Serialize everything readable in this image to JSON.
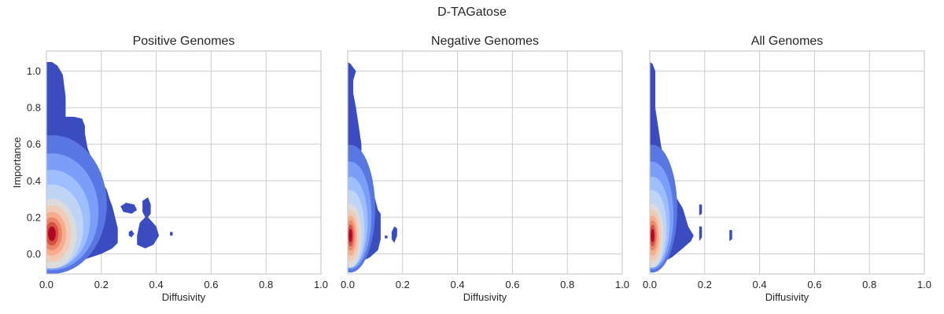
{
  "figure": {
    "suptitle": "D-TAGatose"
  },
  "colors": {
    "levels": [
      "#3b4cc0",
      "#5977e3",
      "#7b9ff9",
      "#9ebeff",
      "#c0d4f5",
      "#dddcdc",
      "#f2cbb7",
      "#f7ac8e",
      "#ee8468",
      "#d65244",
      "#b40426"
    ],
    "grid": "#cccccc",
    "background": "#ffffff"
  },
  "chart_data": [
    {
      "type": "density-contour",
      "title": "Positive Genomes",
      "xlabel": "Diffusivity",
      "ylabel": "Importance",
      "xlim": [
        0,
        1
      ],
      "ylim": [
        -0.11,
        1.11
      ],
      "xticks": [
        "0.0",
        "0.2",
        "0.4",
        "0.6",
        "0.8",
        "1.0"
      ],
      "yticks": [
        "0.0",
        "0.2",
        "0.4",
        "0.6",
        "0.8",
        "1.0"
      ],
      "grid": true,
      "density_peak": {
        "x": 0.02,
        "y": 0.11
      },
      "outer_region": {
        "upper_edge": [
          [
            0.0,
            1.05
          ],
          [
            0.02,
            1.05
          ],
          [
            0.04,
            1.03
          ],
          [
            0.06,
            0.98
          ],
          [
            0.07,
            0.86
          ],
          [
            0.07,
            0.75
          ],
          [
            0.1,
            0.75
          ],
          [
            0.13,
            0.74
          ],
          [
            0.14,
            0.7
          ],
          [
            0.14,
            0.66
          ],
          [
            0.15,
            0.58
          ],
          [
            0.17,
            0.5
          ],
          [
            0.18,
            0.45
          ],
          [
            0.2,
            0.4
          ],
          [
            0.22,
            0.35
          ],
          [
            0.23,
            0.3
          ],
          [
            0.24,
            0.26
          ],
          [
            0.25,
            0.2
          ],
          [
            0.26,
            0.14
          ],
          [
            0.26,
            0.06
          ],
          [
            0.24,
            0.03
          ],
          [
            0.2,
            -0.0
          ],
          [
            0.14,
            -0.03
          ],
          [
            0.1,
            -0.05
          ],
          [
            0.06,
            -0.07
          ],
          [
            0.02,
            -0.07
          ],
          [
            0.0,
            -0.07
          ]
        ],
        "islands": [
          [
            [
              0.27,
              0.26
            ],
            [
              0.29,
              0.28
            ],
            [
              0.32,
              0.27
            ],
            [
              0.33,
              0.24
            ],
            [
              0.31,
              0.22
            ],
            [
              0.28,
              0.23
            ]
          ],
          [
            [
              0.35,
              0.25
            ],
            [
              0.35,
              0.29
            ],
            [
              0.37,
              0.31
            ],
            [
              0.38,
              0.27
            ],
            [
              0.38,
              0.22
            ],
            [
              0.37,
              0.2
            ],
            [
              0.4,
              0.15
            ],
            [
              0.41,
              0.1
            ],
            [
              0.39,
              0.05
            ],
            [
              0.36,
              0.03
            ],
            [
              0.33,
              0.05
            ],
            [
              0.33,
              0.1
            ],
            [
              0.34,
              0.17
            ],
            [
              0.36,
              0.2
            ],
            [
              0.35,
              0.23
            ]
          ],
          [
            [
              0.3,
              0.12
            ],
            [
              0.31,
              0.13
            ],
            [
              0.32,
              0.11
            ],
            [
              0.31,
              0.09
            ],
            [
              0.3,
              0.1
            ]
          ],
          [
            [
              0.45,
              0.12
            ],
            [
              0.46,
              0.12
            ],
            [
              0.46,
              0.1
            ],
            [
              0.45,
              0.1
            ]
          ]
        ]
      },
      "core": {
        "x": 0.02,
        "y": 0.11,
        "scale_x": 1.0,
        "scale_y": 1.0
      }
    },
    {
      "type": "density-contour",
      "title": "Negative Genomes",
      "xlabel": "Diffusivity",
      "ylabel": "",
      "xlim": [
        0,
        1
      ],
      "ylim": [
        -0.11,
        1.11
      ],
      "xticks": [
        "0.0",
        "0.2",
        "0.4",
        "0.6",
        "0.8",
        "1.0"
      ],
      "yticks": [],
      "grid": true,
      "density_peak": {
        "x": 0.01,
        "y": 0.1
      },
      "outer_region": {
        "upper_edge": [
          [
            0.0,
            1.05
          ],
          [
            0.01,
            1.04
          ],
          [
            0.03,
            1.0
          ],
          [
            0.02,
            0.95
          ],
          [
            0.02,
            0.88
          ],
          [
            0.03,
            0.8
          ],
          [
            0.04,
            0.7
          ],
          [
            0.05,
            0.6
          ],
          [
            0.05,
            0.52
          ],
          [
            0.06,
            0.45
          ],
          [
            0.07,
            0.38
          ],
          [
            0.09,
            0.33
          ],
          [
            0.1,
            0.3
          ],
          [
            0.11,
            0.24
          ],
          [
            0.12,
            0.22
          ],
          [
            0.12,
            0.16
          ],
          [
            0.12,
            0.08
          ],
          [
            0.11,
            0.02
          ],
          [
            0.08,
            -0.02
          ],
          [
            0.04,
            -0.05
          ],
          [
            0.0,
            -0.06
          ]
        ],
        "islands": [
          [
            [
              0.17,
              0.15
            ],
            [
              0.18,
              0.14
            ],
            [
              0.18,
              0.1
            ],
            [
              0.17,
              0.06
            ],
            [
              0.16,
              0.08
            ],
            [
              0.16,
              0.12
            ]
          ],
          [
            [
              0.135,
              0.1
            ],
            [
              0.145,
              0.1
            ],
            [
              0.145,
              0.085
            ],
            [
              0.135,
              0.085
            ]
          ]
        ]
      },
      "core": {
        "x": 0.01,
        "y": 0.1,
        "scale_x": 0.45,
        "scale_y": 0.92
      }
    },
    {
      "type": "density-contour",
      "title": "All Genomes",
      "xlabel": "Diffusivity",
      "ylabel": "",
      "xlim": [
        0,
        1
      ],
      "ylim": [
        -0.11,
        1.11
      ],
      "xticks": [
        "0.0",
        "0.2",
        "0.4",
        "0.6",
        "0.8",
        "1.0"
      ],
      "yticks": [],
      "grid": true,
      "density_peak": {
        "x": 0.01,
        "y": 0.1
      },
      "outer_region": {
        "upper_edge": [
          [
            0.0,
            1.05
          ],
          [
            0.01,
            1.04
          ],
          [
            0.02,
            1.0
          ],
          [
            0.02,
            0.95
          ],
          [
            0.02,
            0.88
          ],
          [
            0.02,
            0.8
          ],
          [
            0.03,
            0.7
          ],
          [
            0.04,
            0.6
          ],
          [
            0.05,
            0.52
          ],
          [
            0.06,
            0.44
          ],
          [
            0.07,
            0.38
          ],
          [
            0.09,
            0.33
          ],
          [
            0.1,
            0.3
          ],
          [
            0.12,
            0.25
          ],
          [
            0.13,
            0.2
          ],
          [
            0.14,
            0.15
          ],
          [
            0.16,
            0.1
          ],
          [
            0.15,
            0.07
          ],
          [
            0.12,
            0.03
          ],
          [
            0.08,
            -0.02
          ],
          [
            0.04,
            -0.05
          ],
          [
            0.0,
            -0.06
          ]
        ],
        "islands": [
          [
            [
              0.18,
              0.27
            ],
            [
              0.19,
              0.27
            ],
            [
              0.19,
              0.22
            ],
            [
              0.18,
              0.21
            ]
          ],
          [
            [
              0.18,
              0.15
            ],
            [
              0.19,
              0.15
            ],
            [
              0.19,
              0.09
            ],
            [
              0.18,
              0.07
            ],
            [
              0.18,
              0.1
            ]
          ],
          [
            [
              0.29,
              0.13
            ],
            [
              0.3,
              0.13
            ],
            [
              0.3,
              0.08
            ],
            [
              0.29,
              0.07
            ],
            [
              0.29,
              0.1
            ]
          ]
        ]
      },
      "core": {
        "x": 0.01,
        "y": 0.1,
        "scale_x": 0.45,
        "scale_y": 0.92
      }
    }
  ]
}
